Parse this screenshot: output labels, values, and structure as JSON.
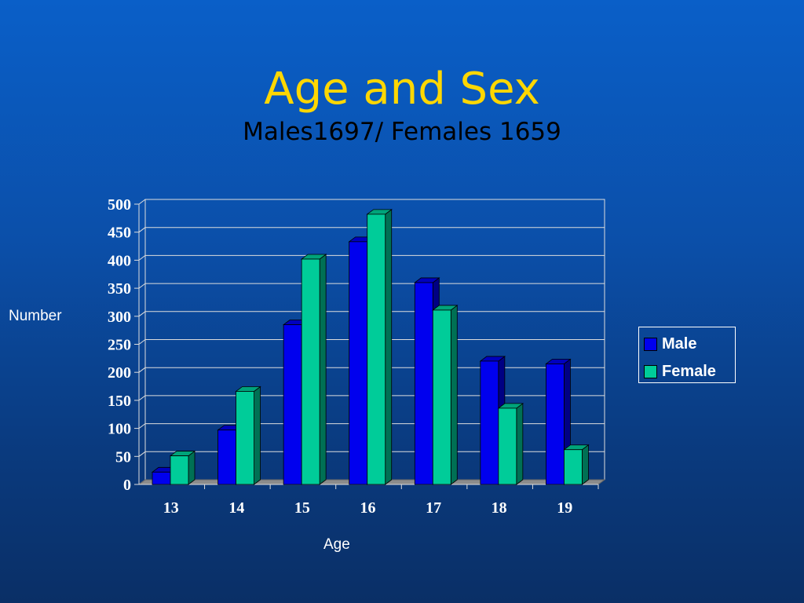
{
  "slide": {
    "title": "Age and Sex",
    "subtitle": "Males1697/ Females 1659"
  },
  "chart_data": {
    "type": "bar",
    "title": "",
    "xlabel": "Age",
    "ylabel": "Number",
    "categories": [
      "13",
      "14",
      "15",
      "16",
      "17",
      "18",
      "19"
    ],
    "series": [
      {
        "name": "Male",
        "color": "#0000ee",
        "values": [
          22,
          97,
          285,
          433,
          360,
          220,
          215
        ]
      },
      {
        "name": "Female",
        "color": "#00cc99",
        "values": [
          51,
          166,
          402,
          482,
          311,
          136,
          62
        ]
      }
    ],
    "ylim": [
      0,
      500
    ],
    "yticks": [
      "0",
      "50",
      "100",
      "150",
      "200",
      "250",
      "300",
      "350",
      "400",
      "450",
      "500"
    ],
    "grid": true,
    "legend_position": "right"
  }
}
